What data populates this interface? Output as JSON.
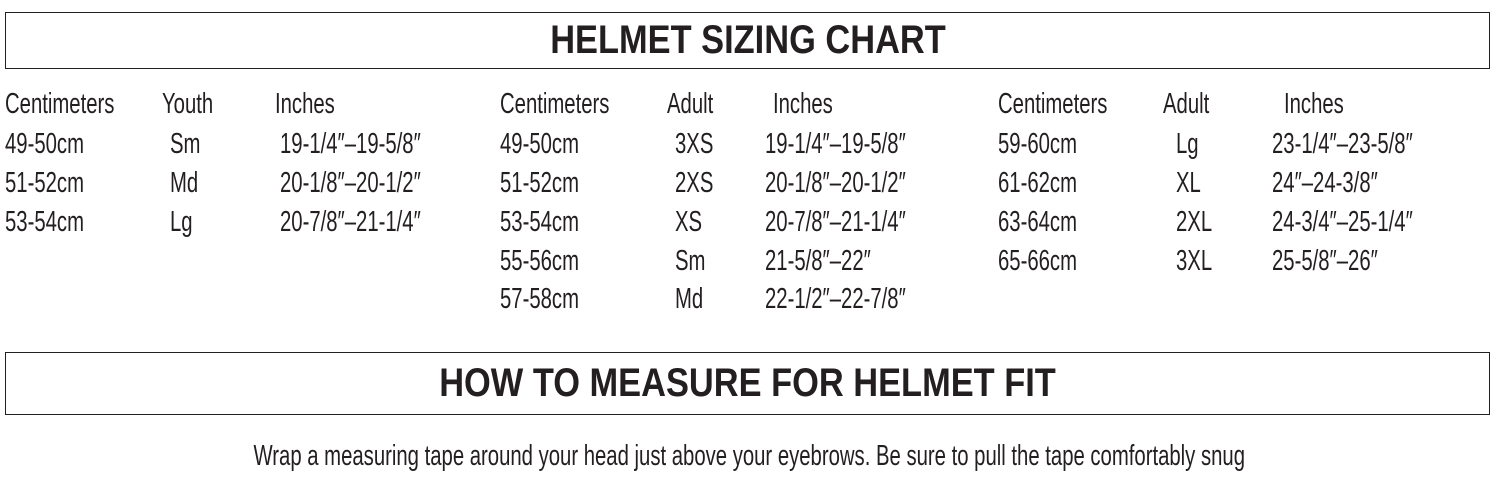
{
  "title": "HELMET SIZING CHART",
  "tables": [
    {
      "headers": [
        "Centimeters",
        "Youth",
        "Inches"
      ],
      "rows": [
        [
          "49-50cm",
          "Sm",
          "19-1/4″–19-5/8″"
        ],
        [
          "51-52cm",
          "Md",
          "20-1/8″–20-1/2″"
        ],
        [
          "53-54cm",
          "Lg",
          "20-7/8″–21-1/4″"
        ]
      ]
    },
    {
      "headers": [
        "Centimeters",
        "Adult",
        "Inches"
      ],
      "rows": [
        [
          "49-50cm",
          "3XS",
          "19-1/4″–19-5/8″"
        ],
        [
          "51-52cm",
          "2XS",
          "20-1/8″–20-1/2″"
        ],
        [
          "53-54cm",
          "XS",
          "20-7/8″–21-1/4″"
        ],
        [
          "55-56cm",
          "Sm",
          "21-5/8″–22″"
        ],
        [
          "57-58cm",
          "Md",
          "22-1/2″–22-7/8″"
        ]
      ]
    },
    {
      "headers": [
        "Centimeters",
        "Adult",
        "Inches"
      ],
      "rows": [
        [
          "59-60cm",
          "Lg",
          "23-1/4″–23-5/8″"
        ],
        [
          "61-62cm",
          "XL",
          "24″–24-3/8″"
        ],
        [
          "63-64cm",
          "2XL",
          "24-3/4″–25-1/4″"
        ],
        [
          "65-66cm",
          "3XL",
          "25-5/8″–26″"
        ]
      ]
    }
  ],
  "measure_title": "HOW TO MEASURE FOR HELMET FIT",
  "measure_text": "Wrap a measuring tape around your head just above your eyebrows. Be sure to pull the tape comfortably snug"
}
